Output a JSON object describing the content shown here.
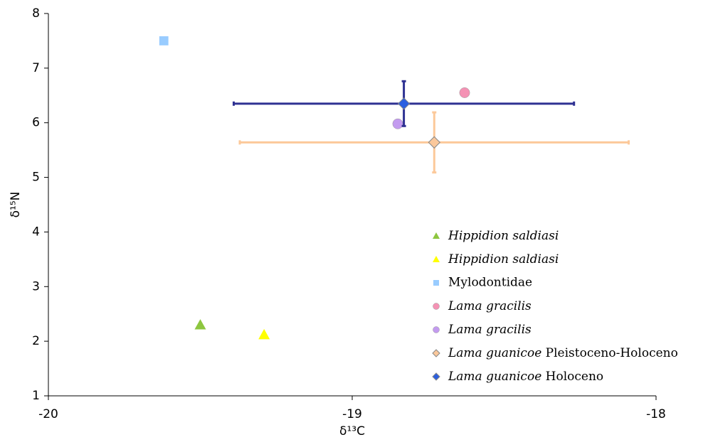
{
  "chart_data": {
    "type": "scatter",
    "x_label": "δ¹³C",
    "y_label": "δ¹⁵N",
    "xlim": [
      -20,
      -18
    ],
    "xticks": [
      -20,
      -19,
      -18
    ],
    "ylim": [
      1,
      8
    ],
    "yticks": [
      1,
      2,
      3,
      4,
      5,
      6,
      7,
      8
    ],
    "grid": false,
    "legend": "lower right",
    "series": [
      {
        "name": "Hippidion saldiasi",
        "color": "#8dc63f",
        "marker": "triangle",
        "italic_words": 2,
        "x": [
          -19.5
        ],
        "values": [
          2.3
        ]
      },
      {
        "name": "Hippidion saldiasi",
        "color": "#ffff00",
        "marker": "triangle",
        "italic_words": 2,
        "x": [
          -19.29
        ],
        "values": [
          2.12
        ]
      },
      {
        "name": "Mylodontidae",
        "color": "#99ccff",
        "marker": "square",
        "italic_words": 0,
        "x": [
          -19.62
        ],
        "values": [
          7.5
        ]
      },
      {
        "name": "Lama gracilis",
        "color": "#f492b4",
        "marker": "circle",
        "italic_words": 2,
        "x": [
          -18.63
        ],
        "values": [
          6.55
        ]
      },
      {
        "name": "Lama gracilis",
        "color": "#c39bef",
        "marker": "circle",
        "italic_words": 2,
        "x": [
          -18.85
        ],
        "values": [
          5.98
        ]
      },
      {
        "name": "Lama guanicoe Pleistoceno-Holoceno",
        "color": "#fbc89b",
        "marker": "diamond",
        "italic_words": 2,
        "x": [
          -18.73
        ],
        "values": [
          5.64
        ],
        "x_error": [
          0.64
        ],
        "y_error": [
          0.55
        ],
        "error_color": "#fcc99a"
      },
      {
        "name": "Lama guanicoe Holoceno",
        "color": "#2b5fe0",
        "marker": "diamond",
        "italic_words": 2,
        "x": [
          -18.83
        ],
        "values": [
          6.35
        ],
        "x_error": [
          0.56
        ],
        "y_error": [
          0.41
        ],
        "error_color": "#2e3192"
      }
    ]
  }
}
